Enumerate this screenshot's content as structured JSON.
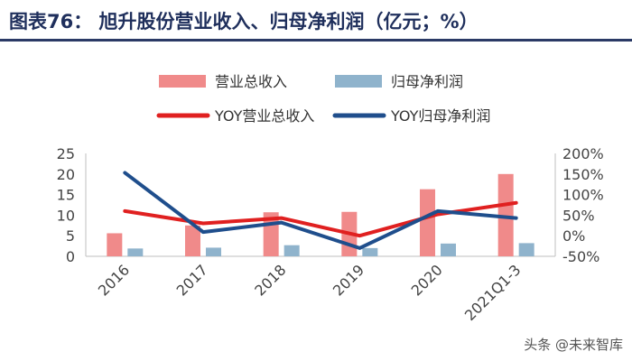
{
  "title": "图表76：  旭升股份营业收入、归母净利润（亿元；%）",
  "watermark": "头条 @未来智库",
  "chart_data": {
    "type": "bar",
    "categories": [
      "2016",
      "2017",
      "2018",
      "2019",
      "2020",
      "2021Q1-3"
    ],
    "series": [
      {
        "name": "营业总收入",
        "kind": "bar",
        "axis": "left",
        "color": "#f08a8a",
        "values": [
          5.6,
          7.5,
          10.7,
          10.8,
          16.3,
          20.0
        ]
      },
      {
        "name": "归母净利润",
        "kind": "bar",
        "axis": "left",
        "color": "#8fb3cc",
        "values": [
          1.9,
          2.1,
          2.7,
          2.0,
          3.1,
          3.2
        ]
      },
      {
        "name": "YOY营业总收入",
        "kind": "line",
        "axis": "right",
        "color": "#e02020",
        "values": [
          0.6,
          0.3,
          0.43,
          0.0,
          0.52,
          0.8
        ]
      },
      {
        "name": "YOY归母净利润",
        "kind": "line",
        "axis": "right",
        "color": "#1f4e8c",
        "values": [
          1.53,
          0.09,
          0.32,
          -0.3,
          0.6,
          0.43
        ]
      }
    ],
    "y_left": {
      "min": 0,
      "max": 25,
      "ticks": [
        "0",
        "5",
        "10",
        "15",
        "20",
        "25"
      ]
    },
    "y_right": {
      "min": -0.5,
      "max": 2.0,
      "ticks": [
        "-50%",
        "0%",
        "50%",
        "100%",
        "150%",
        "200%"
      ]
    },
    "legend_position": "top",
    "grid": false
  }
}
